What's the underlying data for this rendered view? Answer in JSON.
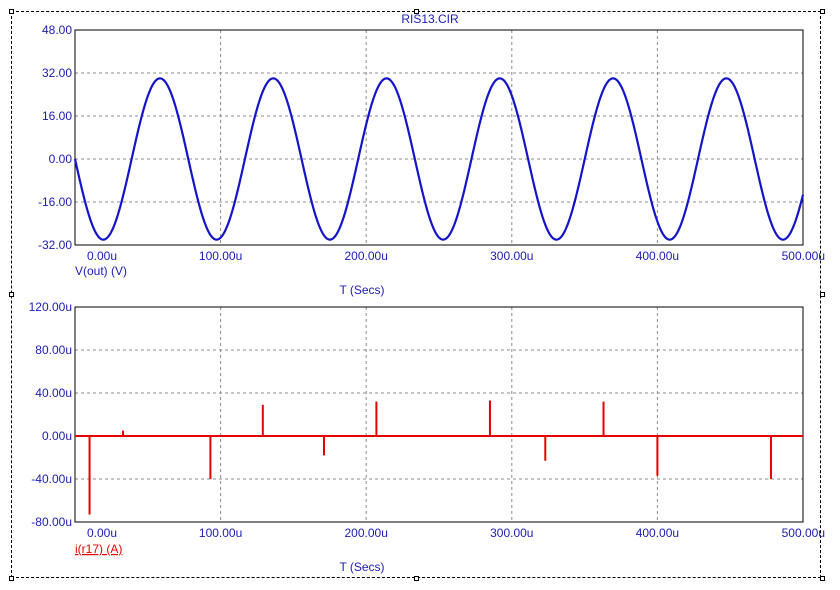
{
  "window_title": "RIS13.CIR",
  "colors": {
    "axis_text": "#1c1cb4",
    "grid": "#8c8c8c",
    "trace1": "#1414c8",
    "trace2": "#e60000"
  },
  "chart_data": [
    {
      "type": "line",
      "title": "RIS13.CIR",
      "series": [
        {
          "name": "V(out) (V)",
          "color": "#1414c8"
        }
      ],
      "ylabel": "V(out) (V)",
      "xlabel": "T (Secs)",
      "xlim": [
        0,
        500
      ],
      "ylim": [
        -32,
        48
      ],
      "x_ticks": [
        "0.00u",
        "100.00u",
        "200.00u",
        "300.00u",
        "400.00u",
        "500.00u"
      ],
      "y_ticks": [
        "48.00",
        "32.00",
        "16.00",
        "0.00",
        "-16.00",
        "-32.00"
      ],
      "grid": true,
      "waveform": {
        "shape": "sine",
        "amplitude": 30,
        "period_us": 77.8,
        "phase": "starts at 0 going negative"
      }
    },
    {
      "type": "line",
      "series": [
        {
          "name": "i(r17) (A)",
          "color": "#e60000"
        }
      ],
      "ylabel": "i(r17) (A)",
      "xlabel": "T (Secs)",
      "xlim": [
        0,
        500
      ],
      "ylim": [
        -80,
        120
      ],
      "x_ticks": [
        "0.00u",
        "100.00u",
        "200.00u",
        "300.00u",
        "400.00u",
        "500.00u"
      ],
      "y_ticks": [
        "120.00u",
        "80.00u",
        "40.00u",
        "0.00u",
        "-40.00u",
        "-80.00u"
      ],
      "grid": true,
      "baseline": 0,
      "spikes": [
        {
          "x": 10,
          "y": -73
        },
        {
          "x": 33,
          "y": 5
        },
        {
          "x": 93,
          "y": -40
        },
        {
          "x": 129,
          "y": 29
        },
        {
          "x": 171,
          "y": -18
        },
        {
          "x": 207,
          "y": 32
        },
        {
          "x": 285,
          "y": 33
        },
        {
          "x": 323,
          "y": -23
        },
        {
          "x": 363,
          "y": 32
        },
        {
          "x": 400,
          "y": -37
        },
        {
          "x": 478,
          "y": -40
        }
      ]
    }
  ]
}
